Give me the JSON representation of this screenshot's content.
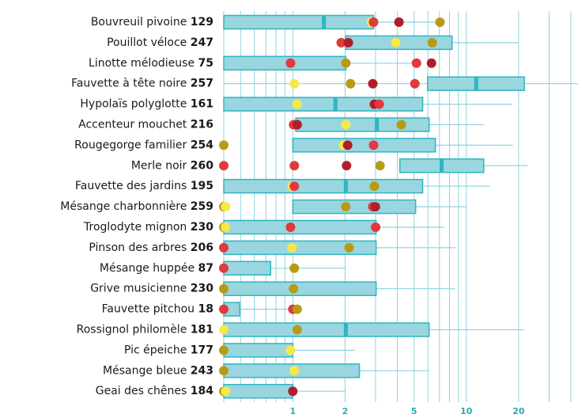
{
  "chart_data": {
    "type": "box",
    "log_x": true,
    "xlim": [
      0.4,
      44
    ],
    "xticks": [
      1,
      2,
      5,
      10,
      20
    ],
    "minor_xticks": [
      0.4,
      0.5,
      0.6,
      0.7,
      0.8,
      0.9,
      3,
      4,
      6,
      7,
      8,
      9,
      30,
      40
    ],
    "box_color": "#9ad6df",
    "edge_color": "#2fb5c2",
    "grid": true,
    "rows": [
      {
        "name": "Bouvreuil pivoine",
        "count": 129,
        "q1": 0.4,
        "median": 1.51,
        "q3": 2.92,
        "whisker": [
          null,
          6.9
        ],
        "points": [
          {
            "x": 2.83,
            "color": "#f5e94a"
          },
          {
            "x": 2.92,
            "color": "#e0393e"
          },
          {
            "x": 4.09,
            "color": "#b01e2c"
          },
          {
            "x": 7.05,
            "color": "#b89b14"
          }
        ]
      },
      {
        "name": "Pouillot véloce",
        "count": 247,
        "q1": 2.02,
        "median": null,
        "q3": 8.27,
        "whisker": [
          null,
          19.8
        ],
        "points": [
          {
            "x": 1.9,
            "color": "#e0393e"
          },
          {
            "x": 2.09,
            "color": "#b01e2c"
          },
          {
            "x": 3.92,
            "color": "#f5e94a"
          },
          {
            "x": 6.36,
            "color": "#b89b14"
          }
        ]
      },
      {
        "name": "Linotte mélodieuse",
        "count": 75,
        "q1": 0.4,
        "median": null,
        "q3": 2.02,
        "whisker": [
          null,
          5.1
        ],
        "points": [
          {
            "x": 0.97,
            "color": "#e0393e"
          },
          {
            "x": 2.02,
            "color": "#b89b14"
          },
          {
            "x": 5.16,
            "color": "#e0393e"
          },
          {
            "x": 6.3,
            "color": "#b01e2c"
          }
        ]
      },
      {
        "name": "Fauvette à tête noire",
        "count": 257,
        "q1": 5.98,
        "median": 11.4,
        "q3": 21.6,
        "whisker": [
          0.4,
          44
        ],
        "points": [
          {
            "x": 1.02,
            "color": "#f5e94a"
          },
          {
            "x": 2.15,
            "color": "#b89b14"
          },
          {
            "x": 2.89,
            "color": "#b01e2c"
          },
          {
            "x": 5.05,
            "color": "#e0393e"
          }
        ]
      },
      {
        "name": "Hypolaïs polyglotte",
        "count": 161,
        "q1": 0.4,
        "median": 1.76,
        "q3": 5.6,
        "whisker": [
          null,
          18.5
        ],
        "points": [
          {
            "x": 1.06,
            "color": "#f5e94a"
          },
          {
            "x": 2.95,
            "color": "#b01e2c"
          },
          {
            "x": 3.15,
            "color": "#e0393e"
          }
        ]
      },
      {
        "name": "Accenteur mouchet",
        "count": 216,
        "q1": 1.04,
        "median": 3.05,
        "q3": 6.1,
        "whisker": [
          null,
          12.6
        ],
        "points": [
          {
            "x": 1.01,
            "color": "#e0393e"
          },
          {
            "x": 1.06,
            "color": "#b01e2c"
          },
          {
            "x": 2.02,
            "color": "#f5e94a"
          },
          {
            "x": 4.22,
            "color": "#b89b14"
          }
        ]
      },
      {
        "name": "Rougegorge familier",
        "count": 254,
        "q1": 1.0,
        "median": null,
        "q3": 6.63,
        "whisker": [
          null,
          18.5
        ],
        "points": [
          {
            "x": 0.4,
            "color": "#b89b14"
          },
          {
            "x": 1.96,
            "color": "#f5e94a"
          },
          {
            "x": 2.07,
            "color": "#b01e2c"
          },
          {
            "x": 2.92,
            "color": "#e0393e"
          }
        ]
      },
      {
        "name": "Merle noir",
        "count": 260,
        "q1": 4.14,
        "median": 7.2,
        "q3": 12.6,
        "whisker": [
          null,
          22.5
        ],
        "points": [
          {
            "x": 0.4,
            "color": "#e0393e"
          },
          {
            "x": 1.02,
            "color": "#e0393e"
          },
          {
            "x": 2.04,
            "color": "#b01e2c"
          },
          {
            "x": 3.18,
            "color": "#b89b14"
          }
        ]
      },
      {
        "name": "Fauvette des jardins",
        "count": 195,
        "q1": 0.4,
        "median": 2.02,
        "q3": 5.6,
        "whisker": [
          null,
          13.7
        ],
        "points": [
          {
            "x": 0.99,
            "color": "#f5e94a"
          },
          {
            "x": 1.02,
            "color": "#e0393e"
          },
          {
            "x": 2.95,
            "color": "#b89b14"
          }
        ]
      },
      {
        "name": "Mésange charbonnière",
        "count": 259,
        "q1": 1.0,
        "median": null,
        "q3": 5.1,
        "whisker": [
          null,
          10
        ],
        "points": [
          {
            "x": 0.4,
            "color": "#b89b14"
          },
          {
            "x": 0.41,
            "color": "#f5e94a"
          },
          {
            "x": 2.02,
            "color": "#b89b14"
          },
          {
            "x": 2.89,
            "color": "#e0393e"
          },
          {
            "x": 2.99,
            "color": "#b01e2c"
          }
        ]
      },
      {
        "name": "Troglodyte mignon",
        "count": 230,
        "q1": 0.4,
        "median": null,
        "q3": 3.02,
        "whisker": [
          null,
          7.5
        ],
        "points": [
          {
            "x": 0.4,
            "color": "#b89b14"
          },
          {
            "x": 0.41,
            "color": "#f5e94a"
          },
          {
            "x": 0.97,
            "color": "#e0393e"
          },
          {
            "x": 3.0,
            "color": "#e0393e"
          }
        ]
      },
      {
        "name": "Pinson des arbres",
        "count": 206,
        "q1": 0.4,
        "median": null,
        "q3": 3.02,
        "whisker": [
          null,
          8.7
        ],
        "points": [
          {
            "x": 0.4,
            "color": "#e0393e"
          },
          {
            "x": 0.99,
            "color": "#f5e94a"
          },
          {
            "x": 2.11,
            "color": "#b89b14"
          }
        ]
      },
      {
        "name": "Mésange huppée",
        "count": 87,
        "q1": 0.4,
        "median": null,
        "q3": 0.745,
        "whisker": [
          null,
          2.02
        ],
        "points": [
          {
            "x": 0.4,
            "color": "#e0393e"
          },
          {
            "x": 1.02,
            "color": "#b89b14"
          }
        ]
      },
      {
        "name": "Grive musicienne",
        "count": 230,
        "q1": 0.4,
        "median": null,
        "q3": 3.02,
        "whisker": [
          null,
          8.6
        ],
        "points": [
          {
            "x": 0.4,
            "color": "#b89b14"
          },
          {
            "x": 1.01,
            "color": "#b89b14"
          }
        ]
      },
      {
        "name": "Fauvette pitchou",
        "count": 18,
        "q1": 0.4,
        "median": null,
        "q3": 0.494,
        "whisker": [
          null,
          1.1
        ],
        "points": [
          {
            "x": 0.4,
            "color": "#e0393e"
          },
          {
            "x": 1.0,
            "color": "#e0393e"
          },
          {
            "x": 1.06,
            "color": "#b89b14"
          }
        ]
      },
      {
        "name": "Rossignol philomèle",
        "count": 181,
        "q1": 0.4,
        "median": 2.02,
        "q3": 6.1,
        "whisker": [
          null,
          21.6
        ],
        "points": [
          {
            "x": 0.4,
            "color": "#f5e94a"
          },
          {
            "x": 1.06,
            "color": "#b89b14"
          }
        ]
      },
      {
        "name": "Pic épeiche",
        "count": 177,
        "q1": 0.4,
        "median": null,
        "q3": 1.0,
        "whisker": [
          null,
          2.27
        ],
        "points": [
          {
            "x": 0.4,
            "color": "#b89b14"
          },
          {
            "x": 0.97,
            "color": "#f5e94a"
          }
        ]
      },
      {
        "name": "Mésange bleue",
        "count": 243,
        "q1": 0.4,
        "median": null,
        "q3": 2.42,
        "whisker": [
          null,
          6.1
        ],
        "points": [
          {
            "x": 0.4,
            "color": "#b89b14"
          },
          {
            "x": 1.02,
            "color": "#f5e94a"
          }
        ]
      },
      {
        "name": "Geai des chênes",
        "count": 184,
        "q1": 0.4,
        "median": null,
        "q3": 1.0,
        "whisker": [
          null,
          2.02
        ],
        "points": [
          {
            "x": 0.4,
            "color": "#b89b14"
          },
          {
            "x": 0.41,
            "color": "#f5e94a"
          },
          {
            "x": 1.0,
            "color": "#b01e2c"
          }
        ]
      }
    ]
  }
}
